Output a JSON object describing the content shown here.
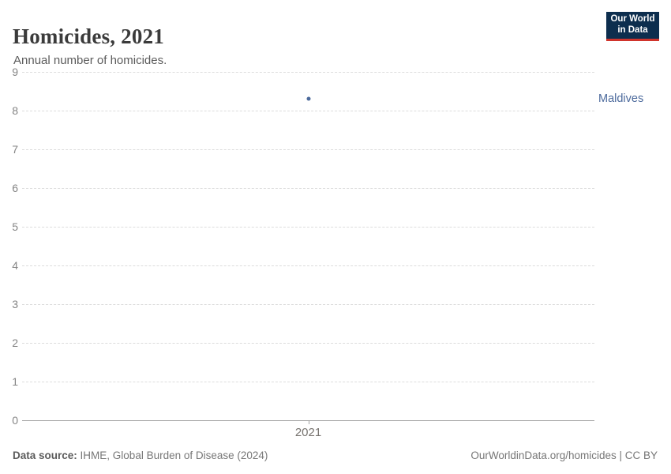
{
  "header": {
    "title": "Homicides, 2021",
    "subtitle": "Annual number of homicides.",
    "logo": {
      "line1": "Our World",
      "line2": "in Data",
      "bg_color": "#0d2e4e",
      "accent_color": "#d0342c"
    }
  },
  "chart_data": {
    "type": "scatter",
    "title": "Homicides, 2021",
    "xlabel": "",
    "ylabel": "",
    "x": [
      2021
    ],
    "series": [
      {
        "name": "Maldives",
        "values": [
          8.3
        ],
        "color": "#4c6a9c"
      }
    ],
    "ylim": [
      0,
      9
    ],
    "yticks": [
      0,
      1,
      2,
      3,
      4,
      5,
      6,
      7,
      8,
      9
    ],
    "xtick_labels": [
      "2021"
    ],
    "grid": "horizontal-dashed",
    "gridline_color": "#dcdcdc",
    "axis_color": "#a1a1a1",
    "legend_position": "right-entity-label"
  },
  "footer": {
    "datasource_label": "Data source:",
    "datasource_value": "IHME, Global Burden of Disease (2024)",
    "license": "OurWorldinData.org/homicides | CC BY"
  }
}
